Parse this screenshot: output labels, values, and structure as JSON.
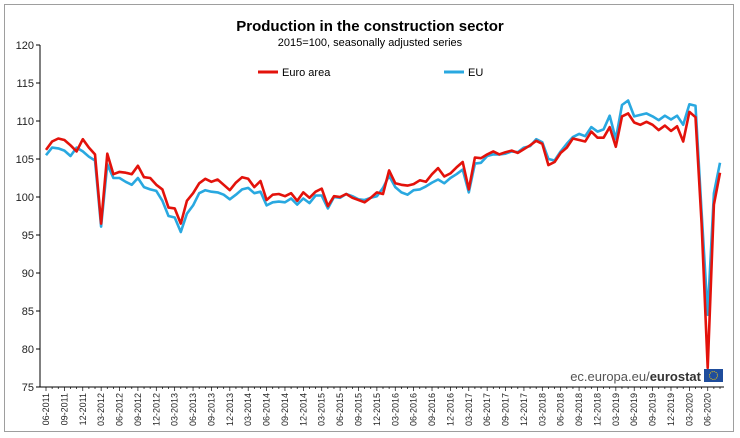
{
  "chart_data": {
    "type": "line",
    "title": "Production in the construction sector",
    "subtitle": "2015=100, seasonally adjusted series",
    "ylim": [
      75,
      120
    ],
    "yticks": [
      75,
      80,
      85,
      90,
      95,
      100,
      105,
      110,
      115,
      120
    ],
    "xtick_labels": [
      "06-2011",
      "09-2011",
      "12-2011",
      "03-2012",
      "06-2012",
      "09-2012",
      "12-2012",
      "03-2013",
      "06-2013",
      "09-2013",
      "12-2013",
      "03-2014",
      "06-2014",
      "09-2014",
      "12-2014",
      "03-2015",
      "06-2015",
      "09-2015",
      "12-2015",
      "03-2016",
      "06-2016",
      "09-2016",
      "12-2016",
      "03-2017",
      "06-2017",
      "09-2017",
      "12-2017",
      "03-2018",
      "06-2018",
      "09-2018",
      "12-2018",
      "03-2019",
      "06-2019",
      "09-2019",
      "12-2019",
      "03-2020",
      "06-2020"
    ],
    "series": [
      {
        "name": "Euro area",
        "color": "#e3120b",
        "values": [
          106.2,
          107.3,
          107.7,
          107.5,
          106.8,
          106.0,
          107.6,
          106.5,
          105.6,
          96.5,
          105.7,
          103.0,
          103.3,
          103.2,
          103.0,
          104.1,
          102.6,
          102.5,
          101.6,
          101.0,
          98.6,
          98.5,
          96.5,
          99.5,
          100.5,
          101.8,
          102.4,
          102.0,
          102.3,
          101.6,
          100.9,
          101.9,
          102.6,
          102.4,
          101.3,
          102.1,
          99.6,
          100.3,
          100.4,
          100.1,
          100.5,
          99.5,
          100.6,
          99.9,
          100.7,
          101.1,
          98.8,
          100.1,
          100.0,
          100.4,
          99.9,
          99.6,
          99.3,
          99.9,
          100.6,
          100.4,
          103.5,
          101.8,
          101.6,
          101.5,
          101.7,
          102.2,
          102.0,
          103.0,
          103.8,
          102.7,
          103.1,
          103.9,
          104.6,
          101.0,
          105.2,
          105.1,
          105.6,
          106.0,
          105.6,
          105.9,
          106.1,
          105.8,
          106.3,
          106.8,
          107.4,
          107.0,
          104.2,
          104.6,
          105.8,
          106.5,
          107.7,
          107.5,
          107.3,
          108.6,
          107.8,
          107.8,
          109.2,
          106.6,
          110.6,
          111.0,
          109.8,
          109.5,
          109.9,
          109.5,
          108.8,
          109.4,
          108.7,
          109.3,
          107.3,
          111.2,
          110.5,
          96.5,
          77.5,
          99.0,
          103.2
        ]
      },
      {
        "name": "EU",
        "color": "#29a8e0",
        "values": [
          105.5,
          106.5,
          106.4,
          106.1,
          105.4,
          106.5,
          106.0,
          105.3,
          104.8,
          96.1,
          104.3,
          102.5,
          102.5,
          102.0,
          101.6,
          102.5,
          101.3,
          101.0,
          100.8,
          99.5,
          97.5,
          97.3,
          95.4,
          97.8,
          98.9,
          100.5,
          100.9,
          100.7,
          100.6,
          100.3,
          99.7,
          100.3,
          101.0,
          101.2,
          100.5,
          100.7,
          98.9,
          99.3,
          99.4,
          99.3,
          99.8,
          99.0,
          99.8,
          99.2,
          100.2,
          100.2,
          98.5,
          100.0,
          99.9,
          100.4,
          100.1,
          99.7,
          99.6,
          99.9,
          100.1,
          101.2,
          102.8,
          101.3,
          100.6,
          100.3,
          100.9,
          101.0,
          101.4,
          101.9,
          102.3,
          101.8,
          102.5,
          103.0,
          103.6,
          100.6,
          104.4,
          104.5,
          105.4,
          105.6,
          105.6,
          105.7,
          106.0,
          105.9,
          106.5,
          106.7,
          107.6,
          107.2,
          105.0,
          104.8,
          106.0,
          107.0,
          107.9,
          108.3,
          108.0,
          109.2,
          108.6,
          108.9,
          110.7,
          107.6,
          112.1,
          112.7,
          110.6,
          110.8,
          111.0,
          110.6,
          110.1,
          110.7,
          110.2,
          110.7,
          109.5,
          112.2,
          112.0,
          98.0,
          84.5,
          100.5,
          104.5
        ]
      }
    ],
    "legend_position": "top"
  },
  "watermark": {
    "prefix": "ec.europa.eu/",
    "brand": "eurostat",
    "flag_color": "#1f4d9c"
  }
}
